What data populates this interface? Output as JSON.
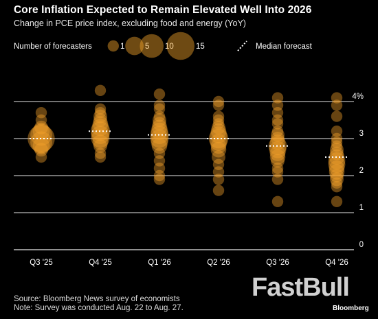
{
  "header": {
    "title": "Core Inflation Expected to Remain Elevated Well Into 2026",
    "subtitle": "Change in PCE price index, excluding food and energy (YoY)"
  },
  "legend": {
    "size_title": "Number of forecasters",
    "size_items": [
      {
        "label": "1",
        "count": 1
      },
      {
        "label": "5",
        "count": 5
      },
      {
        "label": "10",
        "count": 10
      },
      {
        "label": "15",
        "count": 15
      }
    ],
    "median_label": "Median forecast"
  },
  "footer": {
    "source": "Source: Bloomberg News survey of economists",
    "note": "Note: Survey was conducted Aug. 22 to Aug. 27."
  },
  "watermark": "FastBull",
  "brand": "Bloomberg",
  "colors": {
    "background": "#000000",
    "bubble": "#f5a32a",
    "grid": "#ffffff",
    "median": "#ffffff"
  },
  "chart_data": {
    "type": "scatter",
    "y_ticks": [
      "0",
      "1",
      "2",
      "3",
      "4%"
    ],
    "ylim": [
      0,
      4
    ],
    "categories": [
      "Q3 '25",
      "Q4 '25",
      "Q1 '26",
      "Q2 '26",
      "Q3 '26",
      "Q4 '26"
    ],
    "medians": [
      3.0,
      3.2,
      3.1,
      3.0,
      2.8,
      2.5
    ],
    "bubbles": [
      [
        [
          2.5,
          1
        ],
        [
          2.7,
          2
        ],
        [
          2.8,
          4
        ],
        [
          2.9,
          8
        ],
        [
          3.0,
          14
        ],
        [
          3.1,
          8
        ],
        [
          3.2,
          4
        ],
        [
          3.3,
          2
        ],
        [
          3.5,
          1
        ],
        [
          3.7,
          1
        ]
      ],
      [
        [
          2.5,
          1
        ],
        [
          2.6,
          1
        ],
        [
          2.8,
          2
        ],
        [
          2.9,
          3
        ],
        [
          3.0,
          5
        ],
        [
          3.1,
          5
        ],
        [
          3.2,
          6
        ],
        [
          3.3,
          4
        ],
        [
          3.4,
          3
        ],
        [
          3.5,
          2
        ],
        [
          3.6,
          2
        ],
        [
          3.7,
          1
        ],
        [
          3.8,
          1
        ],
        [
          4.3,
          1
        ]
      ],
      [
        [
          1.9,
          1
        ],
        [
          2.0,
          1
        ],
        [
          2.2,
          1
        ],
        [
          2.4,
          1
        ],
        [
          2.6,
          1
        ],
        [
          2.8,
          3
        ],
        [
          2.9,
          4
        ],
        [
          3.0,
          5
        ],
        [
          3.1,
          5
        ],
        [
          3.2,
          4
        ],
        [
          3.3,
          3
        ],
        [
          3.4,
          2
        ],
        [
          3.5,
          2
        ],
        [
          3.6,
          1
        ],
        [
          3.8,
          1
        ],
        [
          3.9,
          1
        ],
        [
          4.2,
          1
        ]
      ],
      [
        [
          1.6,
          1
        ],
        [
          1.9,
          1
        ],
        [
          2.1,
          1
        ],
        [
          2.3,
          1
        ],
        [
          2.5,
          2
        ],
        [
          2.7,
          3
        ],
        [
          2.8,
          3
        ],
        [
          2.9,
          4
        ],
        [
          3.0,
          6
        ],
        [
          3.1,
          4
        ],
        [
          3.2,
          3
        ],
        [
          3.3,
          2
        ],
        [
          3.4,
          1
        ],
        [
          3.5,
          1
        ],
        [
          3.6,
          1
        ],
        [
          3.9,
          1
        ],
        [
          4.0,
          1
        ]
      ],
      [
        [
          1.3,
          1
        ],
        [
          1.9,
          1
        ],
        [
          2.1,
          1
        ],
        [
          2.2,
          1
        ],
        [
          2.4,
          2
        ],
        [
          2.5,
          3
        ],
        [
          2.6,
          3
        ],
        [
          2.7,
          4
        ],
        [
          2.8,
          5
        ],
        [
          2.9,
          3
        ],
        [
          3.0,
          2
        ],
        [
          3.1,
          2
        ],
        [
          3.2,
          1
        ],
        [
          3.4,
          1
        ],
        [
          3.5,
          1
        ],
        [
          3.7,
          1
        ],
        [
          3.9,
          1
        ],
        [
          4.1,
          1
        ]
      ],
      [
        [
          1.3,
          1
        ],
        [
          1.7,
          1
        ],
        [
          1.8,
          1
        ],
        [
          1.9,
          2
        ],
        [
          2.0,
          2
        ],
        [
          2.1,
          3
        ],
        [
          2.2,
          3
        ],
        [
          2.3,
          4
        ],
        [
          2.4,
          4
        ],
        [
          2.5,
          3
        ],
        [
          2.6,
          2
        ],
        [
          2.7,
          2
        ],
        [
          2.8,
          1
        ],
        [
          2.9,
          1
        ],
        [
          3.0,
          1
        ],
        [
          3.2,
          1
        ],
        [
          3.6,
          1
        ],
        [
          3.9,
          1
        ],
        [
          4.1,
          1
        ]
      ]
    ]
  }
}
